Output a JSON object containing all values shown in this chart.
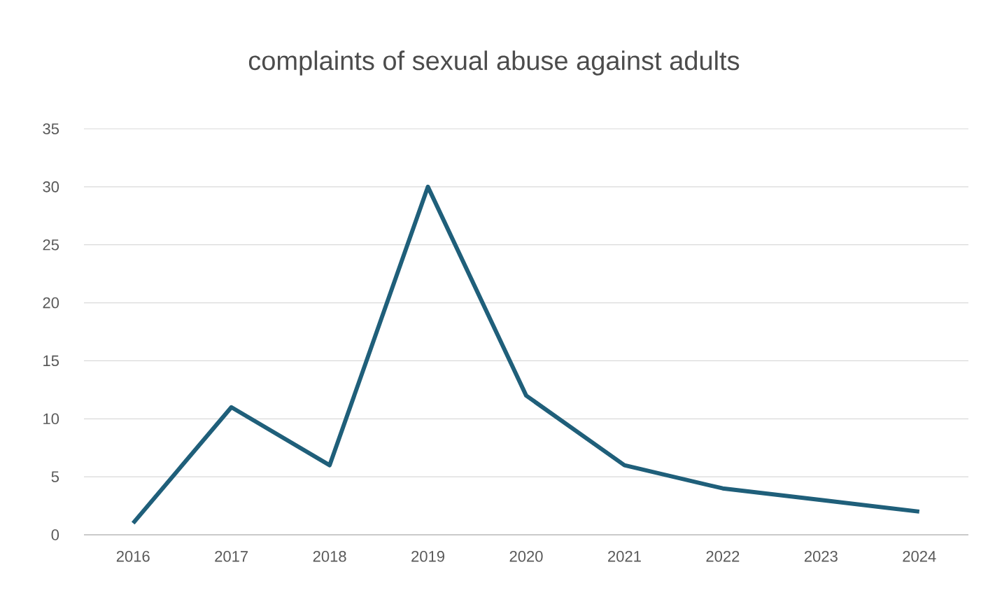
{
  "chart_data": {
    "type": "line",
    "title": "complaints of sexual abuse against adults",
    "categories": [
      "2016",
      "2017",
      "2018",
      "2019",
      "2020",
      "2021",
      "2022",
      "2023",
      "2024"
    ],
    "values": [
      1,
      11,
      6,
      30,
      12,
      6,
      4,
      3,
      2
    ],
    "color": "#1f5f7a",
    "ylim": [
      0,
      35
    ],
    "yticks": [
      0,
      5,
      10,
      15,
      20,
      25,
      30,
      35
    ],
    "grid": "y",
    "marker": "none",
    "line_style": "solid"
  }
}
